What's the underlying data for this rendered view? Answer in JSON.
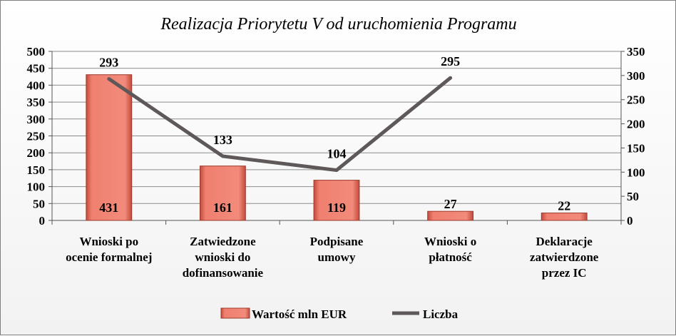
{
  "chart_data": {
    "type": "bar+line",
    "title": "Realizacja Priorytetu V od uruchomienia Programu",
    "categories": [
      [
        "Wnioski po",
        "ocenie formalnej"
      ],
      [
        "Zatwiedzone",
        "wnioski do",
        "dofinansowanie"
      ],
      [
        "Podpisane",
        "umowy"
      ],
      [
        "Wnioski o",
        "płatność"
      ],
      [
        "Deklaracje",
        "zatwierdzone",
        "przez IC"
      ]
    ],
    "series": [
      {
        "name": "Wartość mln EUR",
        "type": "bar",
        "axis": "left",
        "values": [
          431,
          161,
          119,
          27,
          22
        ],
        "color": "#f07f6f"
      },
      {
        "name": "Liczba",
        "type": "line",
        "axis": "right",
        "values": [
          293,
          133,
          104,
          295,
          null
        ],
        "color": "#5f5858"
      }
    ],
    "y_left": {
      "min": 0,
      "max": 500,
      "step": 50,
      "ticks": [
        "0",
        "50",
        "100",
        "150",
        "200",
        "250",
        "300",
        "350",
        "400",
        "450",
        "500"
      ]
    },
    "y_right": {
      "min": 0,
      "max": 350,
      "step": 50,
      "ticks": [
        "0",
        "50",
        "100",
        "150",
        "200",
        "250",
        "300",
        "350"
      ]
    },
    "grid": true,
    "legend_position": "bottom"
  }
}
